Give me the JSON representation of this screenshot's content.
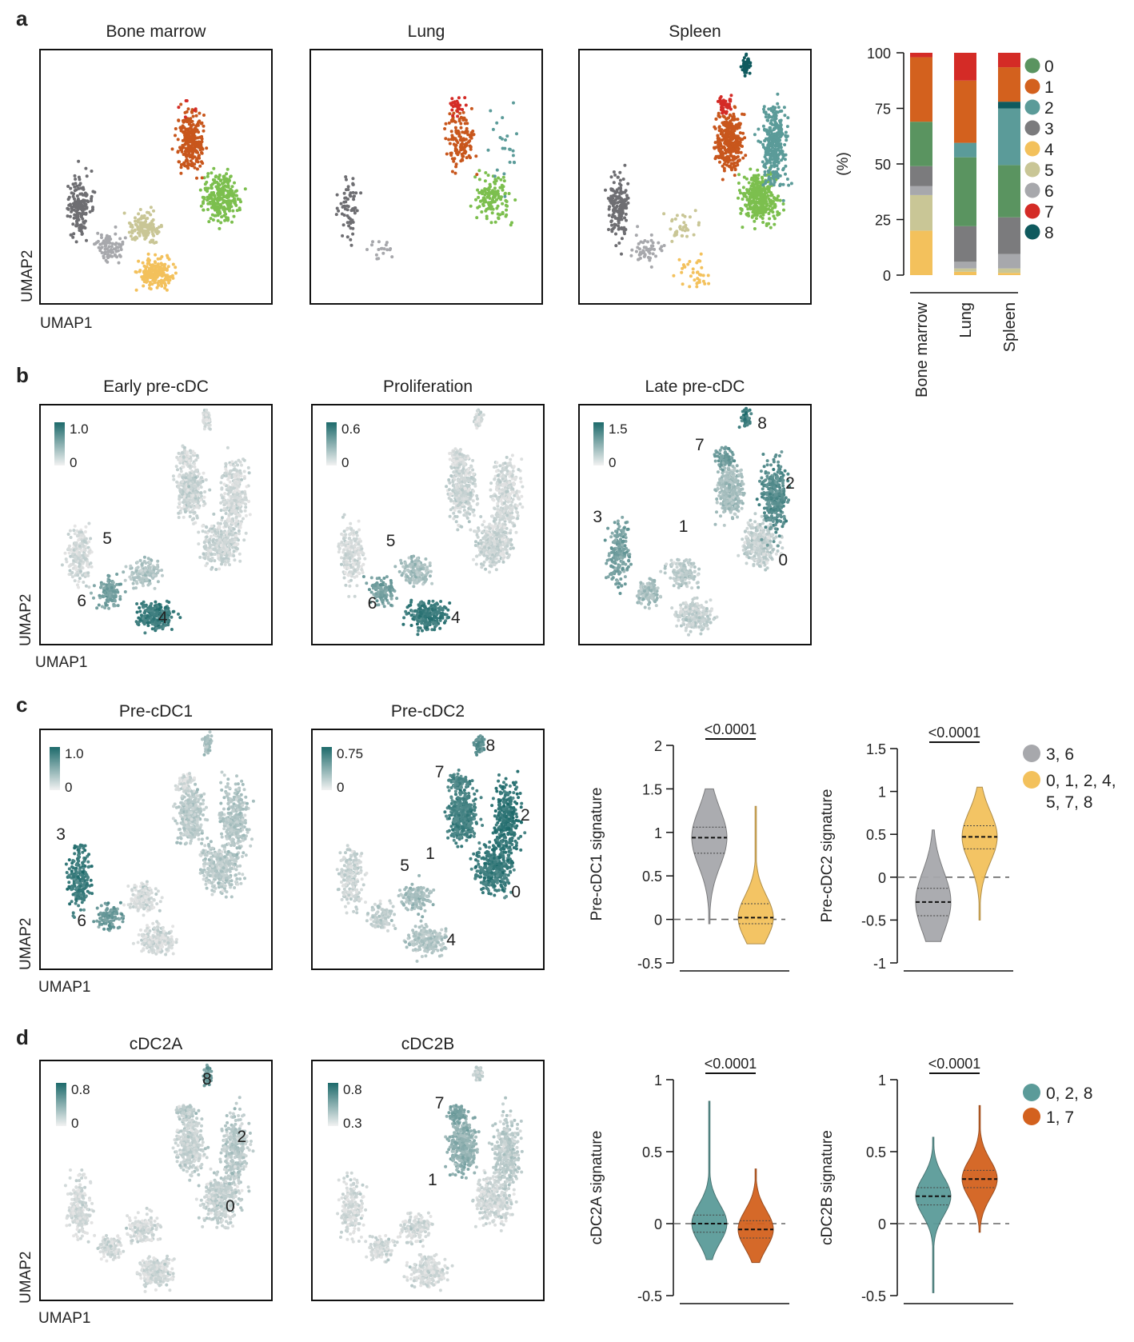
{
  "panels": {
    "a": {
      "letter": "a",
      "umap_titles": [
        "Bone marrow",
        "Lung",
        "Spleen"
      ],
      "xlabel": "UMAP1",
      "ylabel": "UMAP2"
    },
    "b": {
      "letter": "b",
      "umaps": [
        {
          "title": "Early pre-cDC",
          "scale_max": "1.0",
          "scale_min": "0",
          "labels": [
            "5",
            "6",
            "4"
          ]
        },
        {
          "title": "Proliferation",
          "scale_max": "0.6",
          "scale_min": "0",
          "labels": [
            "5",
            "6",
            "4"
          ]
        },
        {
          "title": "Late pre-cDC",
          "scale_max": "1.5",
          "scale_min": "0",
          "labels": [
            "8",
            "7",
            "2",
            "3",
            "1",
            "0"
          ]
        }
      ],
      "xlabel": "UMAP1",
      "ylabel": "UMAP2"
    },
    "c": {
      "letter": "c",
      "umaps": [
        {
          "title": "Pre-cDC1",
          "scale_max": "1.0",
          "scale_min": "0",
          "labels": [
            "3",
            "6"
          ]
        },
        {
          "title": "Pre-cDC2",
          "scale_max": "0.75",
          "scale_min": "0",
          "labels": [
            "8",
            "7",
            "2",
            "1",
            "5",
            "0",
            "4"
          ]
        }
      ],
      "xlabel": "UMAP1",
      "ylabel": "UMAP2",
      "legend": [
        {
          "label": "3, 6",
          "color": "#a7a8ac"
        },
        {
          "label": "0, 1, 2, 4,",
          "label2": "5, 7, 8",
          "color": "#f3c15c"
        }
      ]
    },
    "d": {
      "letter": "d",
      "umaps": [
        {
          "title": "cDC2A",
          "scale_max": "0.8",
          "scale_min": "0",
          "labels": [
            "8",
            "2",
            "0"
          ]
        },
        {
          "title": "cDC2B",
          "scale_max": "0.8",
          "scale_min": "0.3",
          "labels": [
            "7",
            "1"
          ]
        }
      ],
      "xlabel": "UMAP1",
      "ylabel": "UMAP2",
      "legend": [
        {
          "label": "0, 2, 8",
          "color": "#5b9b99"
        },
        {
          "label": "1, 7",
          "color": "#d3611e"
        }
      ]
    }
  },
  "chart_data": [
    {
      "type": "bar",
      "stacked": true,
      "title": "",
      "xlabel": "",
      "ylabel": "(%)",
      "ylim": [
        0,
        100
      ],
      "yticks": [
        0,
        25,
        50,
        75,
        100
      ],
      "categories": [
        "Bone marrow",
        "Lung",
        "Spleen"
      ],
      "legend_position": "right",
      "series": [
        {
          "name": "4",
          "color": "#f3c15c",
          "values": [
            20,
            1.5,
            1
          ]
        },
        {
          "name": "5",
          "color": "#c9c696",
          "values": [
            16,
            1.5,
            2
          ]
        },
        {
          "name": "6",
          "color": "#a7a8ac",
          "values": [
            4,
            3,
            6.5
          ]
        },
        {
          "name": "3",
          "color": "#7b7b7d",
          "values": [
            9,
            16,
            16.5
          ]
        },
        {
          "name": "0",
          "color": "#5a9460",
          "values": [
            20,
            31,
            23.5
          ]
        },
        {
          "name": "2",
          "color": "#5b9b99",
          "values": [
            0,
            6.5,
            25.5
          ]
        },
        {
          "name": "8",
          "color": "#0f5a5e",
          "values": [
            0,
            0,
            3
          ]
        },
        {
          "name": "1",
          "color": "#d3611e",
          "values": [
            29,
            28,
            15.5
          ]
        },
        {
          "name": "7",
          "color": "#d42b26",
          "values": [
            2,
            12.5,
            6.5
          ]
        }
      ],
      "legend_order": [
        "0",
        "1",
        "2",
        "3",
        "4",
        "5",
        "6",
        "7",
        "8"
      ]
    },
    {
      "type": "violin",
      "ylabel": "Pre-cDC1 signature",
      "ylim": [
        -0.5,
        2.0
      ],
      "yticks": [
        -0.5,
        0,
        0.5,
        1.0,
        1.5,
        2.0
      ],
      "pvalue": "<0.0001",
      "groups": [
        {
          "name": "3, 6",
          "color": "#a7a8ac",
          "median": 0.94,
          "q1": 0.76,
          "q3": 1.06,
          "min": -0.05,
          "max": 1.5
        },
        {
          "name": "0, 1, 2, 4, 5, 7, 8",
          "color": "#f3c15c",
          "median": 0.02,
          "q1": -0.05,
          "q3": 0.18,
          "min": -0.28,
          "max": 1.3
        }
      ],
      "reference_line": 0
    },
    {
      "type": "violin",
      "ylabel": "Pre-cDC2 signature",
      "ylim": [
        -1.0,
        1.5
      ],
      "yticks": [
        -1.0,
        -0.5,
        0,
        0.5,
        1.0,
        1.5
      ],
      "pvalue": "<0.0001",
      "groups": [
        {
          "name": "3, 6",
          "color": "#a7a8ac",
          "median": -0.29,
          "q1": -0.45,
          "q3": -0.13,
          "min": -0.75,
          "max": 0.55
        },
        {
          "name": "0, 1, 2, 4, 5, 7, 8",
          "color": "#f3c15c",
          "median": 0.47,
          "q1": 0.33,
          "q3": 0.6,
          "min": -0.5,
          "max": 1.05
        }
      ],
      "reference_line": 0
    },
    {
      "type": "violin",
      "ylabel": "cDC2A signature",
      "ylim": [
        -0.5,
        1.0
      ],
      "yticks": [
        -0.5,
        0,
        0.5,
        1.0
      ],
      "pvalue": "<0.0001",
      "groups": [
        {
          "name": "0, 2, 8",
          "color": "#5b9b99",
          "median": 0.0,
          "q1": -0.06,
          "q3": 0.06,
          "min": -0.25,
          "max": 0.85
        },
        {
          "name": "1, 7",
          "color": "#d3611e",
          "median": -0.04,
          "q1": -0.1,
          "q3": 0.02,
          "min": -0.27,
          "max": 0.38
        }
      ],
      "reference_line": 0
    },
    {
      "type": "violin",
      "ylabel": "cDC2B signature",
      "ylim": [
        -0.5,
        1.0
      ],
      "yticks": [
        -0.5,
        0,
        0.5,
        1.0
      ],
      "pvalue": "<0.0001",
      "groups": [
        {
          "name": "0, 2, 8",
          "color": "#5b9b99",
          "median": 0.19,
          "q1": 0.13,
          "q3": 0.25,
          "min": -0.48,
          "max": 0.6
        },
        {
          "name": "1, 7",
          "color": "#d3611e",
          "median": 0.31,
          "q1": 0.25,
          "q3": 0.37,
          "min": -0.06,
          "max": 0.82
        }
      ],
      "reference_line": 0
    }
  ]
}
